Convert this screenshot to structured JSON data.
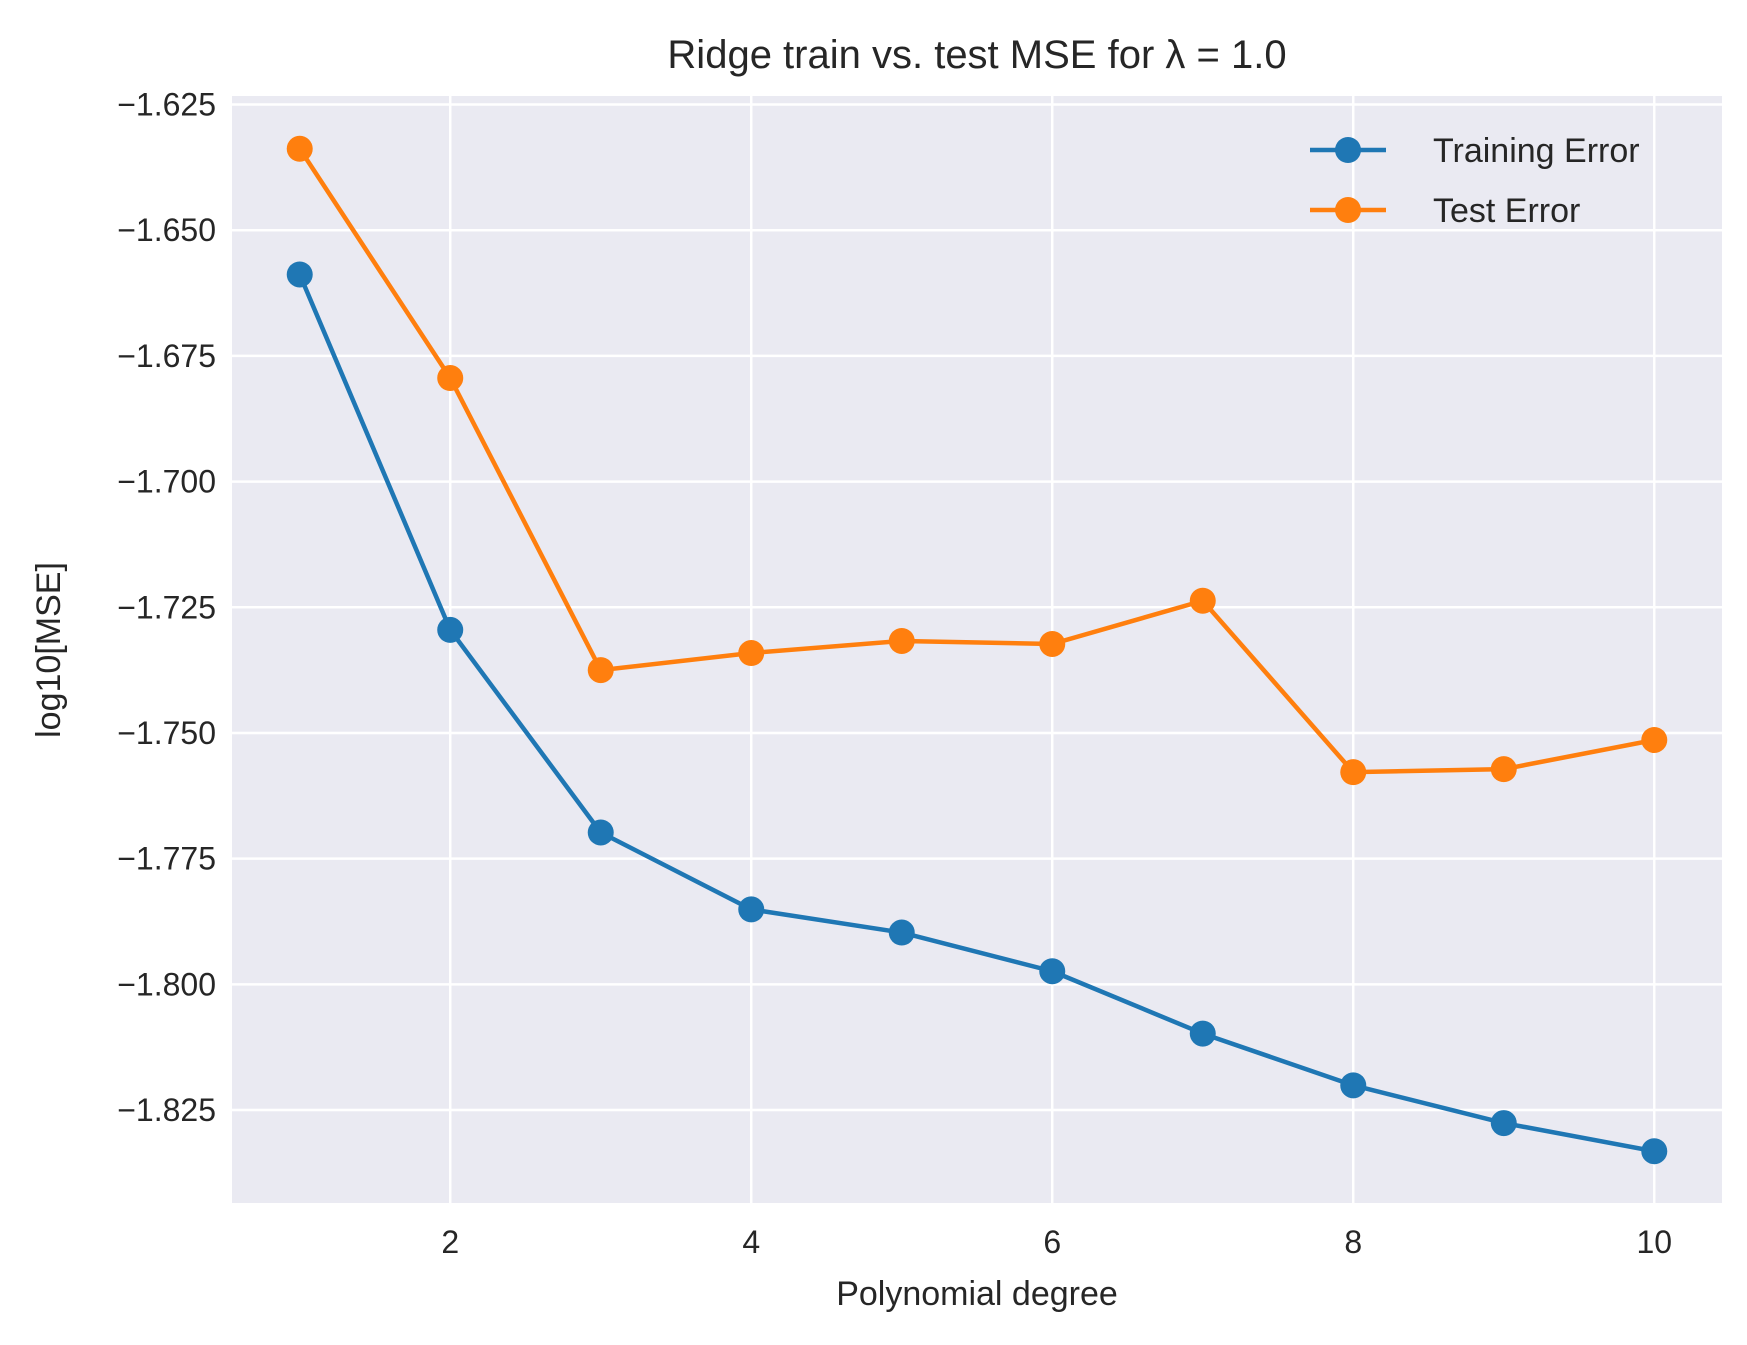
{
  "chart_data": {
    "type": "line",
    "title": "Ridge train vs. test MSE for λ =  1.0",
    "xlabel": "Polynomial degree",
    "ylabel": "log10[MSE]",
    "x": [
      1,
      2,
      3,
      4,
      5,
      6,
      7,
      8,
      9,
      10
    ],
    "xlim": [
      0.55,
      10.45
    ],
    "ylim": [
      -1.8435,
      -1.6233
    ],
    "xticks": [
      2,
      4,
      6,
      8,
      10
    ],
    "xtick_labels": [
      "2",
      "4",
      "6",
      "8",
      "10"
    ],
    "yticks": [
      -1.625,
      -1.65,
      -1.675,
      -1.7,
      -1.725,
      -1.75,
      -1.775,
      -1.8,
      -1.825
    ],
    "ytick_labels": [
      "−1.625",
      "−1.650",
      "−1.675",
      "−1.700",
      "−1.725",
      "−1.750",
      "−1.775",
      "−1.800",
      "−1.825"
    ],
    "grid": true,
    "legend_position": "top-right",
    "background": "#EAEAF2",
    "series": [
      {
        "name": "Training Error",
        "color": "#1f77b4",
        "values": [
          -1.6588,
          -1.7295,
          -1.7698,
          -1.7851,
          -1.7897,
          -1.7974,
          -1.8098,
          -1.8201,
          -1.8276,
          -1.8332
        ]
      },
      {
        "name": "Test Error",
        "color": "#ff7f0e",
        "values": [
          -1.6338,
          -1.6794,
          -1.7375,
          -1.7341,
          -1.7317,
          -1.7323,
          -1.7237,
          -1.7578,
          -1.7572,
          -1.7514
        ]
      }
    ]
  }
}
